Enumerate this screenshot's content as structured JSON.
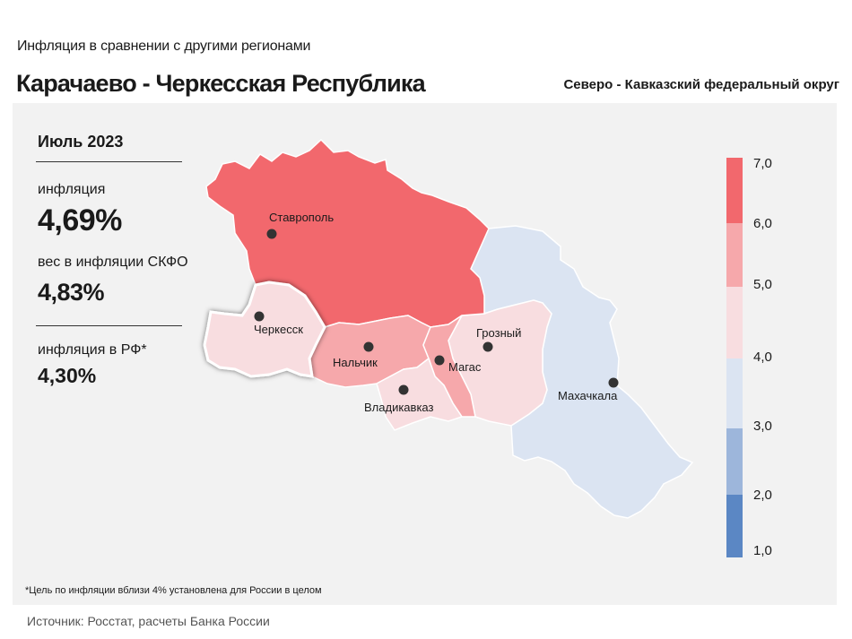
{
  "header": {
    "subtitle": "Инфляция  в сравнении  с другими  регионами",
    "region": "Карачаево - Черкесская Республика",
    "district": "Северо - Кавказский федеральный округ"
  },
  "stats": {
    "period": "Июль 2023",
    "inflation_label": "инфляция",
    "inflation_value": "4,69%",
    "weight_label": "вес в инфляции  СКФО",
    "weight_value": "4,83%",
    "rf_label": "инфляция  в РФ*",
    "rf_value": "4,30%"
  },
  "map": {
    "cities": [
      {
        "name": "Ставрополь"
      },
      {
        "name": "Черкесск"
      },
      {
        "name": "Нальчик"
      },
      {
        "name": "Магас"
      },
      {
        "name": "Грозный"
      },
      {
        "name": "Владикавказ"
      },
      {
        "name": "Махачкала"
      }
    ],
    "regions": [
      {
        "region": "Ставропольский край",
        "bin": "6,0–7,0",
        "color": "#f2686d"
      },
      {
        "region": "Карачаево-Черкесская Республика",
        "bin": "4,0–5,0",
        "color": "#f8dde0",
        "highlighted": true
      },
      {
        "region": "Кабардино-Балкарская Республика",
        "bin": "5,0–6,0",
        "color": "#f6a8ab"
      },
      {
        "region": "Республика Северная Осетия",
        "bin": "4,0–5,0",
        "color": "#f8dde0"
      },
      {
        "region": "Республика Ингушетия",
        "bin": "5,0–6,0",
        "color": "#f6a8ab"
      },
      {
        "region": "Чеченская Республика",
        "bin": "4,0–5,0",
        "color": "#f8dde0"
      },
      {
        "region": "Республика Дагестан",
        "bin": "3,0–4,0",
        "color": "#dbe4f2"
      }
    ]
  },
  "legend": {
    "ticks": [
      "7,0",
      "6,0",
      "5,0",
      "4,0",
      "3,0",
      "2,0",
      "1,0"
    ],
    "colors": [
      "#f2686d",
      "#f6a8ab",
      "#f8dde0",
      "#dbe4f2",
      "#9db6db",
      "#5b87c4"
    ]
  },
  "footnote": "*Цель по инфляции вблизи 4% установлена для России в целом",
  "source": "Источник: Росстат, расчеты Банка России"
}
